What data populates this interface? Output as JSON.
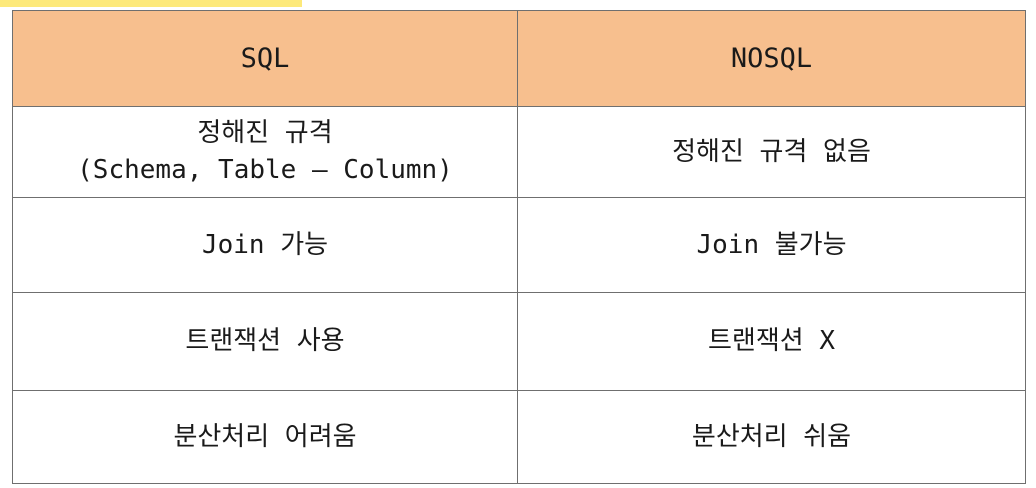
{
  "table": {
    "headers": [
      "SQL",
      "NOSQL"
    ],
    "rows": [
      {
        "sql": [
          "정해진 규격",
          "(Schema, Table – Column)"
        ],
        "nosql": "정해진 규격 없음"
      },
      {
        "sql": "Join 가능",
        "nosql": "Join 불가능"
      },
      {
        "sql": "트랜잭션 사용",
        "nosql": "트랜잭션 X"
      },
      {
        "sql": "분산처리 어려움",
        "nosql": "분산처리 쉬움"
      }
    ]
  },
  "colors": {
    "header_background": "#f7bf8e",
    "highlight_strip": "#fde97a",
    "border": "#6f6f6f"
  }
}
